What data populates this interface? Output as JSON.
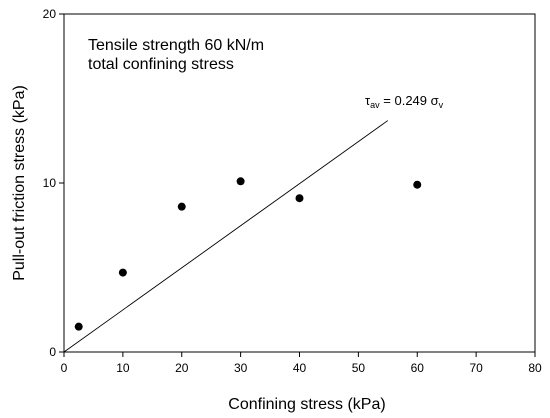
{
  "chart_data": {
    "type": "scatter",
    "title": "",
    "xlabel": "Confining stress (kPa)",
    "ylabel": "Pull-out friction stress (kPa)",
    "xlim": [
      0,
      80
    ],
    "ylim": [
      0,
      20
    ],
    "x_ticks": [
      0,
      10,
      20,
      30,
      40,
      50,
      60,
      70,
      80
    ],
    "y_ticks": [
      0,
      10,
      20
    ],
    "grid": false,
    "series": [
      {
        "points": [
          {
            "x": 2.5,
            "y": 1.5
          },
          {
            "x": 10,
            "y": 4.7
          },
          {
            "x": 20,
            "y": 8.6
          },
          {
            "x": 30,
            "y": 10.1
          },
          {
            "x": 40,
            "y": 9.1
          },
          {
            "x": 60,
            "y": 9.9
          }
        ]
      }
    ],
    "fit_line": {
      "slope": 0.249,
      "x_range": [
        0,
        55
      ],
      "equation": {
        "lhs": "τ",
        "lhs_sub": "av",
        "middle": " = 0.249 ",
        "rhs": "σ",
        "rhs_sub": "v"
      }
    },
    "annotations": [
      "Tensile strength 60 kN/m",
      "total confining stress"
    ]
  }
}
